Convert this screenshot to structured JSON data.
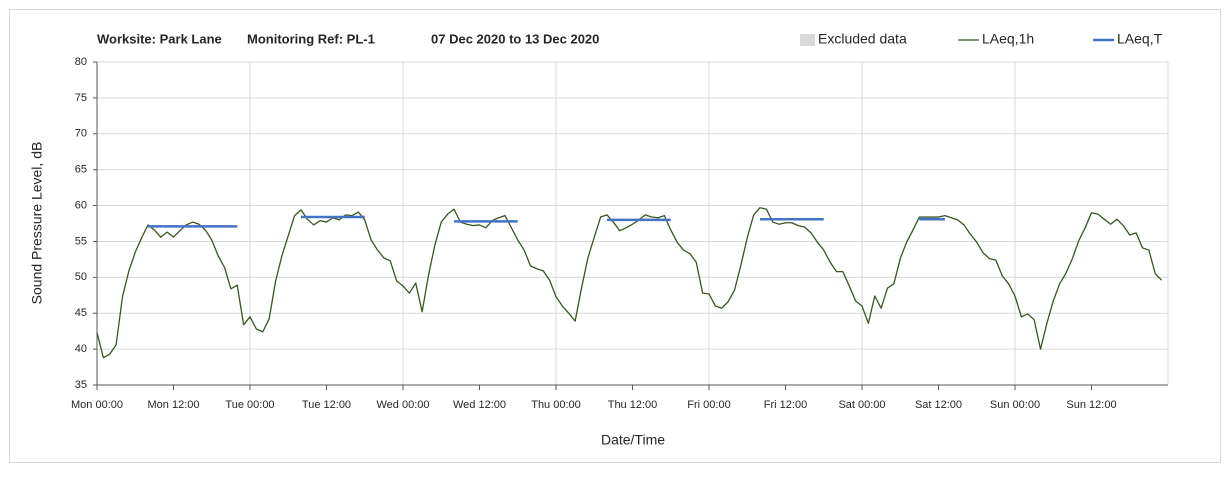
{
  "chart_data": {
    "type": "line",
    "title_parts": [
      "Worksite: Park Lane",
      "Monitoring Ref: PL-1",
      "07 Dec 2020 to 13 Dec 2020"
    ],
    "x_label": "Date/Time",
    "y_label": "Sound Pressure Level, dB",
    "xlim": [
      0,
      168
    ],
    "ylim": [
      35,
      80
    ],
    "yticks": [
      35,
      40,
      45,
      50,
      55,
      60,
      65,
      70,
      75,
      80
    ],
    "xticks": [
      {
        "value": 0,
        "label": "Mon 00:00"
      },
      {
        "value": 12,
        "label": "Mon 12:00"
      },
      {
        "value": 24,
        "label": "Tue 00:00"
      },
      {
        "value": 36,
        "label": "Tue 12:00"
      },
      {
        "value": 48,
        "label": "Wed 00:00"
      },
      {
        "value": 60,
        "label": "Wed 12:00"
      },
      {
        "value": 72,
        "label": "Thu 00:00"
      },
      {
        "value": 84,
        "label": "Thu 12:00"
      },
      {
        "value": 96,
        "label": "Fri 00:00"
      },
      {
        "value": 108,
        "label": "Fri 12:00"
      },
      {
        "value": 120,
        "label": "Sat 00:00"
      },
      {
        "value": 132,
        "label": "Sat 12:00"
      },
      {
        "value": 144,
        "label": "Sun 00:00"
      },
      {
        "value": 156,
        "label": "Sun 12:00"
      }
    ],
    "x_gridlines": [
      0,
      24,
      48,
      72,
      96,
      120,
      144,
      168
    ],
    "grid": true,
    "legend_position": "top-right",
    "excluded": {
      "name": "Excluded data",
      "color": "#d9d9d9"
    },
    "series": [
      {
        "name": "LAeq,1h",
        "color": "#375623",
        "width": 1.3,
        "x": [
          0,
          1,
          2,
          3,
          4,
          5,
          6,
          7,
          8,
          9,
          10,
          11,
          12,
          13,
          14,
          15,
          16,
          17,
          18,
          19,
          20,
          21,
          22,
          23,
          24,
          25,
          26,
          27,
          28,
          29,
          30,
          31,
          32,
          33,
          34,
          35,
          36,
          37,
          38,
          39,
          40,
          41,
          42,
          43,
          44,
          45,
          46,
          47,
          48,
          49,
          50,
          51,
          52,
          53,
          54,
          55,
          56,
          57,
          58,
          59,
          60,
          61,
          62,
          63,
          64,
          65,
          66,
          67,
          68,
          69,
          70,
          71,
          72,
          73,
          74,
          75,
          76,
          77,
          78,
          79,
          80,
          81,
          82,
          83,
          84,
          85,
          86,
          87,
          88,
          89,
          90,
          91,
          92,
          93,
          94,
          95,
          96,
          97,
          98,
          99,
          100,
          101,
          102,
          103,
          104,
          105,
          106,
          107,
          108,
          109,
          110,
          111,
          112,
          113,
          114,
          115,
          116,
          117,
          118,
          119,
          120,
          121,
          122,
          123,
          124,
          125,
          126,
          127,
          128,
          129,
          130,
          131,
          132,
          133,
          134,
          135,
          136,
          137,
          138,
          139,
          140,
          141,
          142,
          143,
          144,
          145,
          146,
          147,
          148,
          149,
          150,
          151,
          152,
          153,
          154,
          155,
          156,
          157,
          158,
          159,
          160,
          161,
          162,
          163,
          164,
          165,
          166,
          167
        ],
        "values": [
          42.3,
          38.8,
          39.3,
          40.6,
          47.3,
          50.9,
          53.5,
          55.5,
          57.3,
          56.6,
          55.6,
          56.3,
          55.6,
          56.5,
          57.3,
          57.7,
          57.4,
          56.6,
          55.2,
          53.0,
          51.4,
          48.4,
          48.9,
          43.4,
          44.5,
          42.8,
          42.4,
          44.2,
          49.4,
          53.0,
          55.8,
          58.6,
          59.4,
          58.1,
          57.3,
          57.9,
          57.7,
          58.3,
          58.0,
          58.7,
          58.6,
          59.1,
          58.0,
          55.2,
          53.8,
          52.7,
          52.3,
          49.5,
          48.8,
          47.8,
          49.2,
          45.2,
          50.3,
          54.5,
          57.7,
          58.8,
          59.5,
          57.7,
          57.4,
          57.2,
          57.3,
          56.9,
          57.9,
          58.3,
          58.6,
          56.9,
          55.2,
          53.8,
          51.6,
          51.2,
          50.9,
          49.6,
          47.3,
          46.0,
          45.0,
          43.9,
          48.5,
          52.7,
          55.6,
          58.4,
          58.7,
          57.7,
          56.5,
          56.9,
          57.4,
          58.0,
          58.7,
          58.4,
          58.3,
          58.6,
          56.6,
          54.9,
          53.8,
          53.3,
          52.1,
          47.8,
          47.7,
          46.0,
          45.7,
          46.6,
          48.2,
          51.7,
          55.5,
          58.7,
          59.7,
          59.5,
          57.7,
          57.4,
          57.6,
          57.6,
          57.2,
          57.0,
          56.2,
          54.9,
          53.8,
          52.1,
          50.8,
          50.8,
          48.8,
          46.7,
          46.0,
          43.6,
          47.4,
          45.7,
          48.5,
          49.1,
          52.6,
          54.9,
          56.6,
          58.4,
          58.4,
          58.4,
          58.4,
          58.6,
          58.3,
          58.0,
          57.3,
          56.0,
          54.9,
          53.4,
          52.6,
          52.4,
          50.2,
          49.1,
          47.4,
          44.5,
          44.9,
          44.1,
          40.0,
          43.6,
          46.7,
          49.1,
          50.6,
          52.6,
          55.1,
          56.9,
          59.0,
          58.8,
          58.1,
          57.4,
          58.1,
          57.2,
          55.9,
          56.2,
          54.1,
          53.8,
          50.5,
          49.6
        ]
      },
      {
        "name": "LAeq,T",
        "color": "#4472c4",
        "width": 2.5,
        "x": [
          8,
          22,
          23,
          32,
          42,
          43,
          56,
          66,
          67,
          80,
          90,
          91,
          104,
          114,
          115,
          129,
          133
        ],
        "values": [
          57.1,
          57.1,
          null,
          58.4,
          58.4,
          null,
          57.8,
          57.8,
          null,
          58.0,
          58.0,
          null,
          58.1,
          58.1,
          null,
          58.1,
          58.1
        ]
      }
    ]
  }
}
